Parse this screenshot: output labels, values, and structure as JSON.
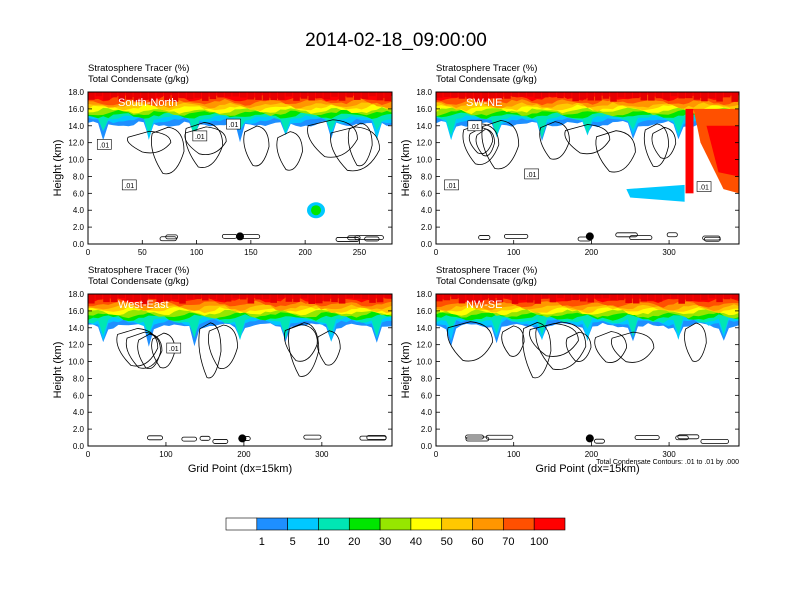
{
  "title": "2014-02-18_09:00:00",
  "chart_data": [
    {
      "type": "heatmap",
      "title_line1": "Stratosphere Tracer   (%)",
      "title_line2": "Total Condensate   (g/kg)",
      "label": "South-North",
      "ylabel": "Height (km)",
      "xlabel": "",
      "xlim": [
        0,
        280
      ],
      "ylim": [
        0,
        18
      ],
      "xticks": [
        "0",
        "50",
        "100",
        "150",
        "200",
        "250"
      ],
      "xtick_values": [
        0,
        50,
        100,
        150,
        200,
        250
      ],
      "yticks": [
        "0.0",
        "2.0",
        "4.0",
        "6.0",
        "8.0",
        "10.0",
        "12.0",
        "14.0",
        "16.0",
        "18.0"
      ],
      "marker_x": 140,
      "contour_labels": [
        {
          "x": 15,
          "y": 11.8,
          "text": ".01"
        },
        {
          "x": 38,
          "y": 7,
          "text": ".01"
        },
        {
          "x": 103,
          "y": 12.8,
          "text": ".01"
        },
        {
          "x": 134,
          "y": 14.2,
          "text": ".01"
        }
      ],
      "extra_blob": {
        "x": 210,
        "y": 4
      }
    },
    {
      "type": "heatmap",
      "title_line1": "Stratosphere Tracer   (%)",
      "title_line2": "Total Condensate   (g/kg)",
      "label": "SW-NE",
      "ylabel": "Height (km)",
      "xlabel": "",
      "xlim": [
        0,
        390
      ],
      "ylim": [
        0,
        18
      ],
      "xticks": [
        "0",
        "100",
        "200",
        "300"
      ],
      "xtick_values": [
        0,
        100,
        200,
        300
      ],
      "yticks": [
        "0.0",
        "2.0",
        "4.0",
        "6.0",
        "8.0",
        "10.0",
        "12.0",
        "14.0",
        "16.0",
        "18.0"
      ],
      "marker_x": 198,
      "contour_labels": [
        {
          "x": 50,
          "y": 14,
          "text": ".01"
        },
        {
          "x": 20,
          "y": 7,
          "text": ".01"
        },
        {
          "x": 123,
          "y": 8.3,
          "text": ".01"
        },
        {
          "x": 345,
          "y": 6.8,
          "text": ".01"
        }
      ],
      "intrusion": true
    },
    {
      "type": "heatmap",
      "title_line1": "Stratosphere Tracer   (%)",
      "title_line2": "Total Condensate   (g/kg)",
      "label": "West-East",
      "ylabel": "Height (km)",
      "xlabel": "Grid Point (dx=15km)",
      "xlim": [
        0,
        390
      ],
      "ylim": [
        0,
        18
      ],
      "xticks": [
        "0",
        "100",
        "200",
        "300"
      ],
      "xtick_values": [
        0,
        100,
        200,
        300
      ],
      "yticks": [
        "0.0",
        "2.0",
        "4.0",
        "6.0",
        "8.0",
        "10.0",
        "12.0",
        "14.0",
        "16.0",
        "18.0"
      ],
      "marker_x": 198,
      "contour_labels": [
        {
          "x": 110,
          "y": 11.6,
          "text": ".01"
        }
      ]
    },
    {
      "type": "heatmap",
      "title_line1": "Stratosphere Tracer   (%)",
      "title_line2": "Total Condensate   (g/kg)",
      "label": "NW-SE",
      "ylabel": "Height (km)",
      "xlabel": "Grid Point (dx=15km)",
      "footnote": "Total Condensate Contours: .01 to .01 by .000",
      "xlim": [
        0,
        390
      ],
      "ylim": [
        0,
        18
      ],
      "xticks": [
        "0",
        "100",
        "200",
        "300"
      ],
      "xtick_values": [
        0,
        100,
        200,
        300
      ],
      "yticks": [
        "0.0",
        "2.0",
        "4.0",
        "6.0",
        "8.0",
        "10.0",
        "12.0",
        "14.0",
        "16.0",
        "18.0"
      ],
      "marker_x": 198,
      "contour_labels": []
    }
  ],
  "colorbar": {
    "levels": [
      "1",
      "5",
      "10",
      "20",
      "30",
      "40",
      "50",
      "60",
      "70",
      "100"
    ],
    "colors": [
      "#ffffff",
      "#1e8fff",
      "#00c8ff",
      "#00e6b4",
      "#00e600",
      "#96e600",
      "#ffff00",
      "#ffc800",
      "#ff9600",
      "#ff5000",
      "#ff0000"
    ]
  }
}
